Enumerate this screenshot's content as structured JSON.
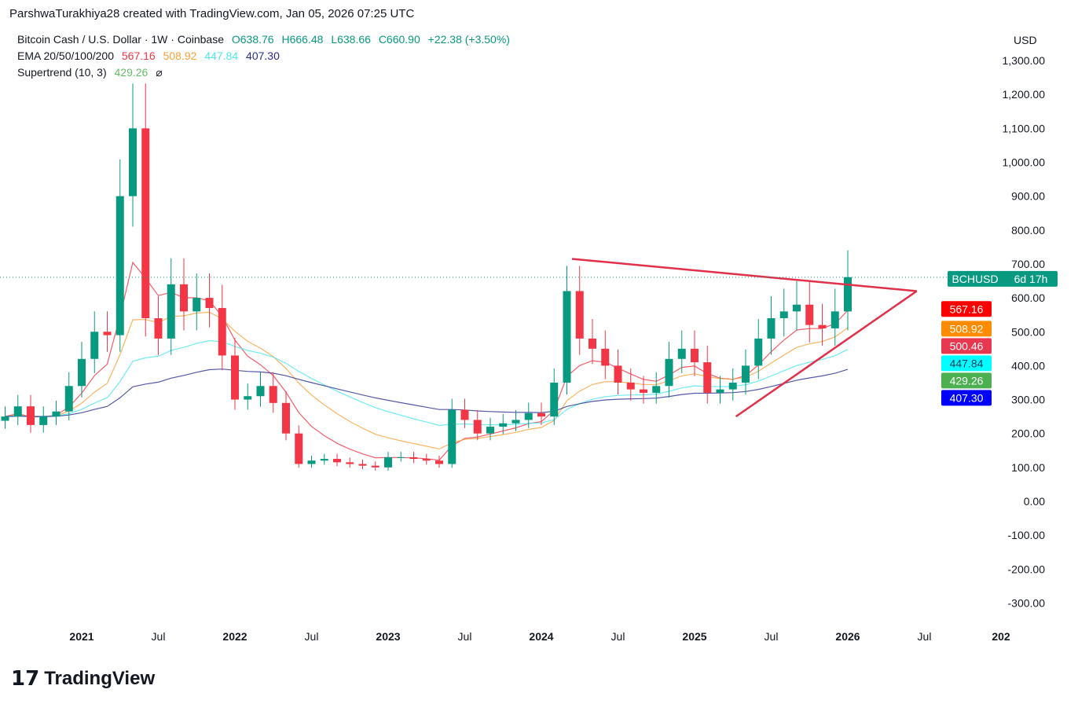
{
  "header": {
    "credit": "ParshwaTurakhiya28 created with TradingView.com, Jan 05, 2026 07:25 UTC"
  },
  "legend": {
    "symbol": "Bitcoin Cash / U.S. Dollar · 1W · Coinbase",
    "open": "O638.76",
    "high": "H666.48",
    "low": "L638.66",
    "close": "C660.90",
    "change": "+22.38 (+3.50%)",
    "ema_label": "EMA 20/50/100/200",
    "ema_values": [
      "567.16",
      "508.92",
      "447.84",
      "407.30"
    ],
    "supertrend_label": "Supertrend (10, 3)",
    "supertrend_value": "429.26",
    "supertrend_icon": "eye-off-icon"
  },
  "branding": {
    "logo_text": "TradingView"
  },
  "chart_data": {
    "type": "candlestick",
    "currency": "USD",
    "ylim": [
      -340,
      1400
    ],
    "yticks": [
      -300,
      -200,
      -100,
      0,
      100,
      200,
      300,
      400,
      500,
      600,
      700,
      800,
      900,
      1000,
      1100,
      1200,
      1300
    ],
    "xticks": [
      {
        "t": 2021,
        "label": "2021",
        "bold": true
      },
      {
        "t": 2021.5,
        "label": "Jul"
      },
      {
        "t": 2022,
        "label": "2022",
        "bold": true
      },
      {
        "t": 2022.5,
        "label": "Jul"
      },
      {
        "t": 2023,
        "label": "2023",
        "bold": true
      },
      {
        "t": 2023.5,
        "label": "Jul"
      },
      {
        "t": 2024,
        "label": "2024",
        "bold": true
      },
      {
        "t": 2024.5,
        "label": "Jul"
      },
      {
        "t": 2025,
        "label": "2025",
        "bold": true
      },
      {
        "t": 2025.5,
        "label": "Jul"
      },
      {
        "t": 2026,
        "label": "2026",
        "bold": true
      },
      {
        "t": 2026.5,
        "label": "Jul"
      },
      {
        "t": 2027,
        "label": "202",
        "bold": true
      }
    ],
    "start": "2020-07",
    "monthly_close": [
      250,
      280,
      225,
      250,
      265,
      340,
      420,
      500,
      490,
      900,
      1100,
      540,
      480,
      640,
      560,
      600,
      570,
      430,
      300,
      310,
      340,
      290,
      200,
      110,
      120,
      125,
      115,
      110,
      105,
      100,
      130,
      130,
      125,
      120,
      110,
      270,
      240,
      200,
      220,
      230,
      240,
      260,
      250,
      350,
      620,
      480,
      450,
      400,
      350,
      330,
      320,
      340,
      420,
      450,
      410,
      320,
      330,
      350,
      400,
      480,
      540,
      560,
      580,
      520,
      510,
      560,
      661
    ],
    "ema_colors": [
      "#f23645",
      "#f7a13a",
      "#4ee6ef",
      "#2a2e8f"
    ],
    "up_color": "#089981",
    "down_color": "#f23645",
    "trendlines": [
      {
        "from": [
          2024.2,
          715
        ],
        "to": [
          2026.45,
          620
        ]
      },
      {
        "from": [
          2025.27,
          250
        ],
        "to": [
          2026.45,
          620
        ]
      }
    ],
    "price_labels": [
      {
        "text": "BCHUSD",
        "timer": "6d 17h",
        "value": 660.9,
        "color": "#089981"
      },
      {
        "text": "567.16",
        "value": 567.16,
        "color": "#ff0000"
      },
      {
        "text": "508.92",
        "value": 508.92,
        "color": "#ff8c00"
      },
      {
        "text": "500.46",
        "value": 500.46,
        "color": "#e8384f"
      },
      {
        "text": "447.84",
        "value": 447.84,
        "color": "#00ffff",
        "dark": true
      },
      {
        "text": "429.26",
        "value": 429.26,
        "color": "#4caf50"
      },
      {
        "text": "407.30",
        "value": 407.3,
        "color": "#0000ff"
      }
    ]
  }
}
